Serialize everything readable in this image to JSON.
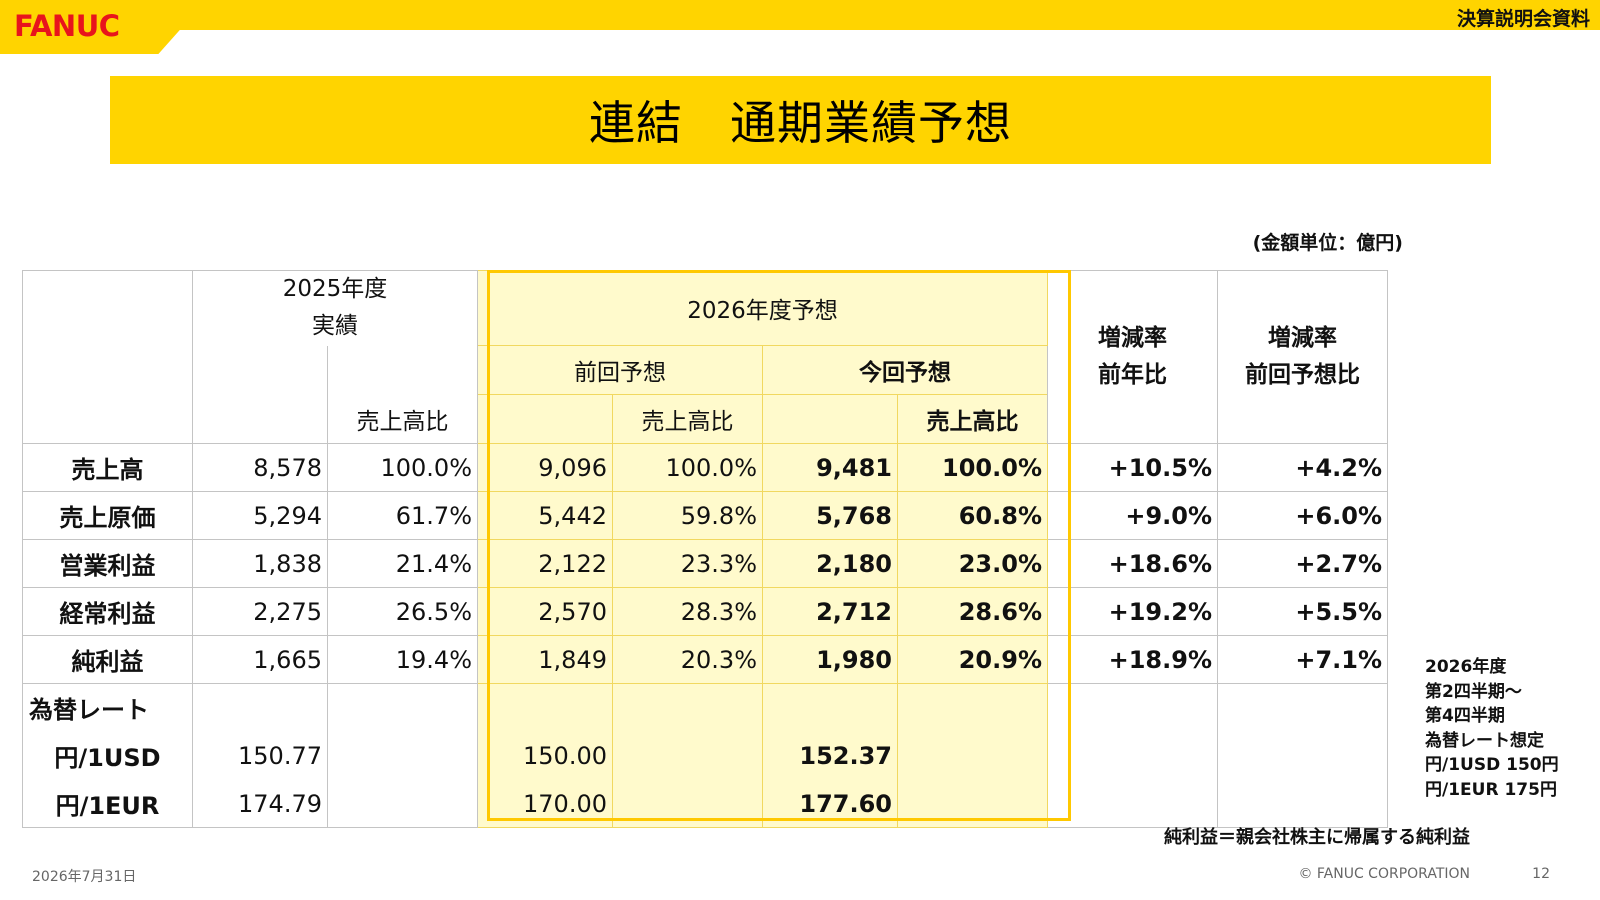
{
  "header": {
    "logo": "FANUC",
    "doc_label": "決算説明会資料",
    "title": "連結　通期業績予想",
    "unit": "(金額単位：億円)"
  },
  "table": {
    "header": {
      "fy2025": "2025年度\n実績",
      "fy2026": "2026年度予想",
      "prev_forecast": "前回予想",
      "curr_forecast": "今回予想",
      "ratio_label": "売上高比",
      "yoy": "増減率\n前年比",
      "vs_prev": "増減率\n前回予想比"
    },
    "rows": [
      {
        "label": "売上高",
        "fy25": "8,578",
        "fy25_r": "100.0%",
        "prev": "9,096",
        "prev_r": "100.0%",
        "curr": "9,481",
        "curr_r": "100.0%",
        "yoy": "+10.5%",
        "vsprev": "+4.2%"
      },
      {
        "label": "売上原価",
        "fy25": "5,294",
        "fy25_r": "61.7%",
        "prev": "5,442",
        "prev_r": "59.8%",
        "curr": "5,768",
        "curr_r": "60.8%",
        "yoy": "+9.0%",
        "vsprev": "+6.0%"
      },
      {
        "label": "営業利益",
        "fy25": "1,838",
        "fy25_r": "21.4%",
        "prev": "2,122",
        "prev_r": "23.3%",
        "curr": "2,180",
        "curr_r": "23.0%",
        "yoy": "+18.6%",
        "vsprev": "+2.7%"
      },
      {
        "label": "経常利益",
        "fy25": "2,275",
        "fy25_r": "26.5%",
        "prev": "2,570",
        "prev_r": "28.3%",
        "curr": "2,712",
        "curr_r": "28.6%",
        "yoy": "+19.2%",
        "vsprev": "+5.5%"
      },
      {
        "label": "純利益",
        "fy25": "1,665",
        "fy25_r": "19.4%",
        "prev": "1,849",
        "prev_r": "20.3%",
        "curr": "1,980",
        "curr_r": "20.9%",
        "yoy": "+18.9%",
        "vsprev": "+7.1%"
      }
    ],
    "fx": {
      "label": "為替レート",
      "usd_label": "円/1USD",
      "eur_label": "円/1EUR",
      "fy25_usd": "150.77",
      "fy25_eur": "174.79",
      "prev_usd": "150.00",
      "prev_eur": "170.00",
      "curr_usd": "152.37",
      "curr_eur": "177.60"
    }
  },
  "side_note": "2026年度\n第2四半期～\n第4四半期\n為替レート想定\n円/1USD 150円\n円/1EUR 175円",
  "footnote": "純利益＝親会社株主に帰属する純利益",
  "footer": {
    "date": "2026年7月31日",
    "copyright": "© FANUC CORPORATION",
    "page": "12"
  },
  "colors": {
    "brand_yellow": "#FFD400",
    "forecast_fill": "#FFFACC",
    "forecast_border": "#FFC800",
    "logo_red": "#E8141C"
  }
}
